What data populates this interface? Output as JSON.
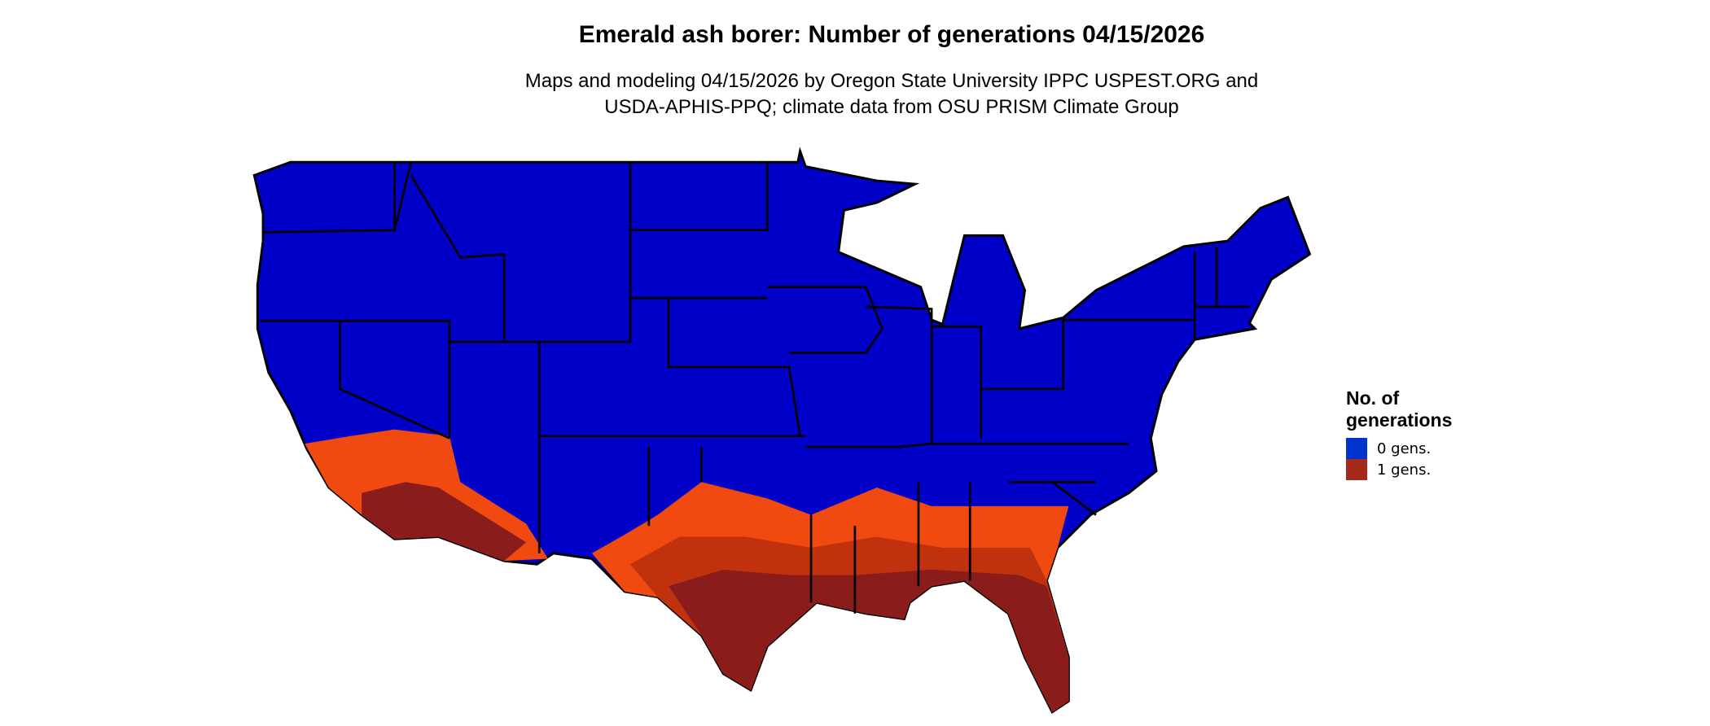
{
  "title": "Emerald ash borer: Number of generations 04/15/2026",
  "subtitle_line1": "Maps and modeling 04/15/2026 by Oregon State University IPPC USPEST.ORG and",
  "subtitle_line2": "USDA-APHIS-PPQ; climate data from OSU PRISM Climate Group",
  "legend": {
    "title_line1": "No. of",
    "title_line2": "generations",
    "items": [
      {
        "label": "0 gens.",
        "color": "#0033cc"
      },
      {
        "label": "1 gens.",
        "color": "#a52a1a"
      }
    ]
  },
  "colors": {
    "zero_gens_map": "#0000c8",
    "one_gen_dark": "#8b1c1c",
    "one_gen_mid": "#c0320e",
    "one_gen_light": "#f04a10"
  }
}
